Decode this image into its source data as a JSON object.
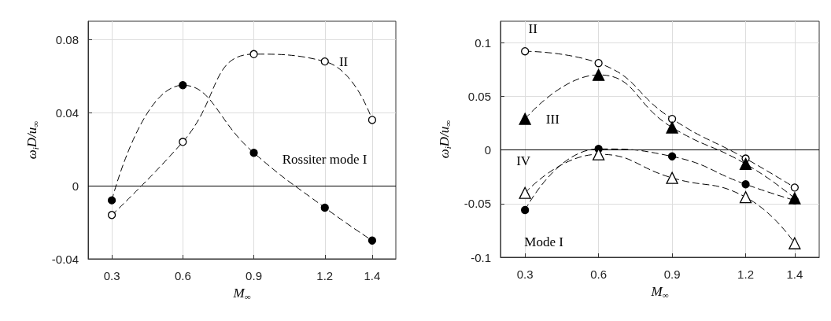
{
  "chart_data": [
    {
      "type": "line",
      "xlabel": "M$_{∞}$",
      "ylabel": "ω$_{i}$D/u$_{∞}$",
      "x": [
        0.3,
        0.6,
        0.9,
        1.2,
        1.4
      ],
      "xlim": [
        0.2,
        1.5
      ],
      "xticks": [
        0.3,
        0.6,
        0.9,
        1.2,
        1.4
      ],
      "ylim": [
        -0.04,
        0.09
      ],
      "yticks": [
        -0.04,
        0,
        0.04,
        0.08
      ],
      "grid": true,
      "line_style": "dashed",
      "marker": "circle",
      "series": [
        {
          "name": "Rossiter mode I",
          "color": "#000000",
          "colors": [
            "#000000",
            "#000000",
            "#000000",
            "#000000",
            "#000000"
          ],
          "values": [
            -0.008,
            0.055,
            0.018,
            -0.012,
            -0.03
          ]
        },
        {
          "name": "II",
          "color": "#000000",
          "colors": [
            "#ffffff",
            "#ffffff",
            "#ffffff",
            "#ffffff",
            "#ffffff"
          ],
          "values": [
            -0.016,
            0.024,
            0.072,
            0.068,
            0.036
          ]
        }
      ],
      "ref_lines": [
        {
          "axis": "y",
          "value": 0,
          "color": "#000000",
          "line_style": "solid"
        }
      ]
    },
    {
      "type": "line",
      "xlabel": "M$_{∞}$",
      "ylabel": "ω$_{i}$D/u$_{∞}$",
      "x": [
        0.3,
        0.6,
        0.9,
        1.2,
        1.4
      ],
      "xlim": [
        0.2,
        1.5
      ],
      "xticks": [
        0.3,
        0.6,
        0.9,
        1.2,
        1.4
      ],
      "ylim": [
        -0.1,
        0.12
      ],
      "yticks": [
        -0.1,
        -0.05,
        0,
        0.05,
        0.1
      ],
      "grid": true,
      "line_style": "dashed",
      "series": [
        {
          "name": "II",
          "color": "#000000",
          "marker": "circle",
          "colors": [
            "#ffffff",
            "#ffffff",
            "#ffffff",
            "#ffffff",
            "#ffffff"
          ],
          "values": [
            0.092,
            0.081,
            0.029,
            -0.008,
            -0.035
          ]
        },
        {
          "name": "III",
          "color": "#000000",
          "marker": "triangle",
          "colors": [
            "#000000",
            "#000000",
            "#000000",
            "#000000",
            "#000000"
          ],
          "values": [
            0.029,
            0.07,
            0.021,
            -0.013,
            -0.045
          ]
        },
        {
          "name": "Mode I",
          "color": "#000000",
          "marker": "circle",
          "colors": [
            "#000000",
            "#000000",
            "#000000",
            "#000000",
            "#000000"
          ],
          "values": [
            -0.056,
            0.001,
            -0.006,
            -0.032,
            -0.047
          ]
        },
        {
          "name": "IV",
          "color": "#000000",
          "marker": "triangle",
          "colors": [
            "#ffffff",
            "#ffffff",
            "#ffffff",
            "#ffffff",
            "#ffffff"
          ],
          "values": [
            -0.04,
            -0.004,
            -0.026,
            -0.044,
            -0.087
          ]
        }
      ],
      "ref_lines": [
        {
          "axis": "y",
          "value": 0,
          "color": "#000000",
          "line_style": "solid"
        }
      ]
    }
  ]
}
